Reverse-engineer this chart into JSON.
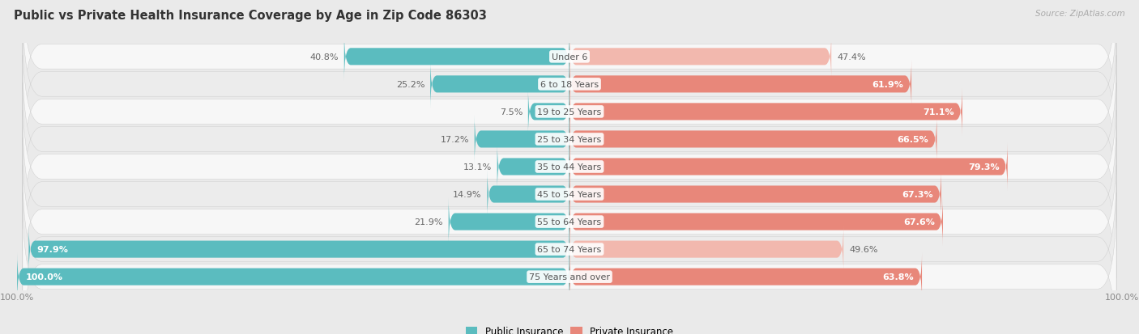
{
  "title": "Public vs Private Health Insurance Coverage by Age in Zip Code 86303",
  "source": "Source: ZipAtlas.com",
  "categories": [
    "Under 6",
    "6 to 18 Years",
    "19 to 25 Years",
    "25 to 34 Years",
    "35 to 44 Years",
    "45 to 54 Years",
    "55 to 64 Years",
    "65 to 74 Years",
    "75 Years and over"
  ],
  "public_values": [
    40.8,
    25.2,
    7.5,
    17.2,
    13.1,
    14.9,
    21.9,
    97.9,
    100.0
  ],
  "private_values": [
    47.4,
    61.9,
    71.1,
    66.5,
    79.3,
    67.3,
    67.6,
    49.6,
    63.8
  ],
  "public_color": "#5bbcbf",
  "private_color": "#e8877a",
  "public_color_light": "#a8d8d9",
  "private_color_light": "#f2b8ae",
  "background_color": "#eaeaea",
  "row_light": "#f7f7f7",
  "row_dark": "#ececec",
  "bar_height": 0.62,
  "max_value": 100.0,
  "title_fontsize": 10.5,
  "label_fontsize": 8,
  "value_fontsize": 8,
  "legend_fontsize": 8.5
}
